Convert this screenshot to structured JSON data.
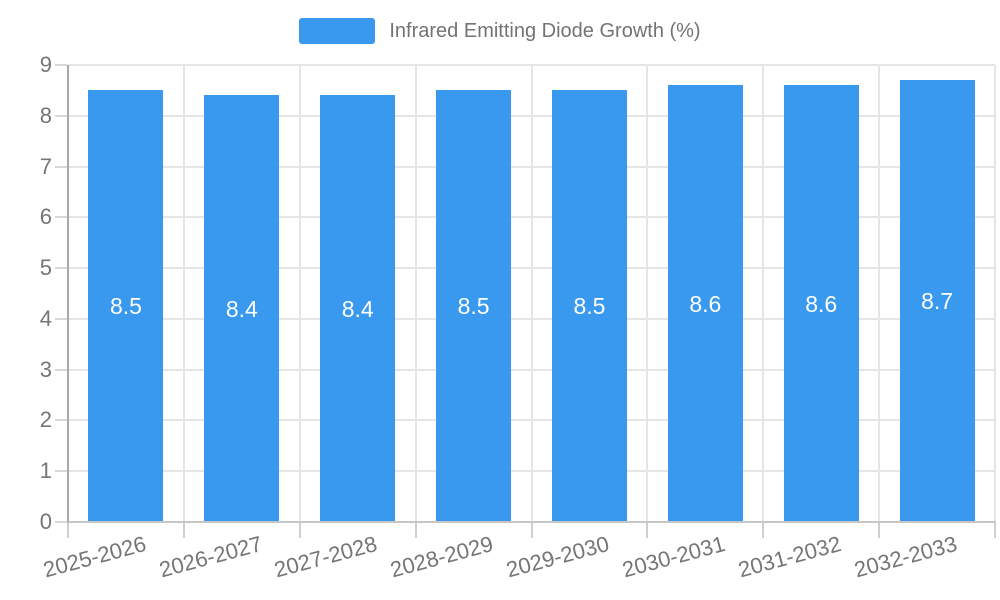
{
  "legend": {
    "label": "Infrared Emitting Diode Growth (%)"
  },
  "chart_data": {
    "type": "bar",
    "title": "",
    "series_name": "Infrared Emitting Diode Growth (%)",
    "categories": [
      "2025-2026",
      "2026-2027",
      "2027-2028",
      "2028-2029",
      "2029-2030",
      "2030-2031",
      "2031-2032",
      "2032-2033"
    ],
    "values": [
      8.5,
      8.4,
      8.4,
      8.5,
      8.5,
      8.6,
      8.6,
      8.7
    ],
    "value_labels": [
      "8.5",
      "8.4",
      "8.4",
      "8.5",
      "8.5",
      "8.6",
      "8.6",
      "8.7"
    ],
    "xlabel": "",
    "ylabel": "",
    "ylim": [
      0,
      9
    ],
    "yticks": [
      0,
      1,
      2,
      3,
      4,
      5,
      6,
      7,
      8,
      9
    ],
    "grid": true,
    "legend_position": "top-center",
    "bar_color": "#3899EF",
    "bar_label_color": "#FFFFFF",
    "axis_label_color": "#757575",
    "grid_color": "#E5E5E5",
    "x_label_rotation_deg": -15
  }
}
